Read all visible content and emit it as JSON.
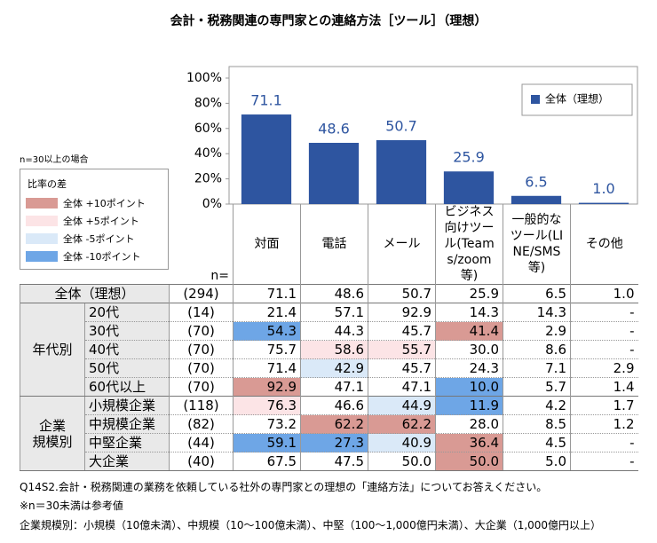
{
  "chart_data": {
    "type": "bar",
    "title": "会計・税務関連の専門家との連絡方法［ツール］（理想）",
    "categories": [
      "対面",
      "電話",
      "メール",
      "ビジネス向けツール(Teams/zoom等)",
      "一般的なツール(LINE/SMS等)",
      "その他"
    ],
    "series": [
      {
        "name": "全体（理想）",
        "color": "#2e55a0",
        "values": [
          71.1,
          48.6,
          50.7,
          25.9,
          6.5,
          1.0
        ],
        "value_labels": [
          "71.1",
          "48.6",
          "50.7",
          "25.9",
          "6.5",
          "1.0"
        ]
      }
    ],
    "ylim": [
      0,
      100
    ],
    "yticks": [
      {
        "value": 0,
        "label": "0%"
      },
      {
        "value": 20,
        "label": "20%"
      },
      {
        "value": 40,
        "label": "40%"
      },
      {
        "value": 60,
        "label": "60%"
      },
      {
        "value": 80,
        "label": "80%"
      },
      {
        "value": 100,
        "label": "100%"
      }
    ],
    "legend": "top-right"
  },
  "diff_legend": {
    "note": "n=30以上の場合",
    "title": "比率の差",
    "items": [
      {
        "label": "全体 +10ポイント",
        "color": "#d99a94"
      },
      {
        "label": "全体 +5ポイント",
        "color": "#fce4e6"
      },
      {
        "label": "全体 -5ポイント",
        "color": "#dae9f8"
      },
      {
        "label": "全体 -10ポイント",
        "color": "#6ea6e6"
      }
    ]
  },
  "table": {
    "n_label": "n=",
    "total": {
      "label": "全体（理想）",
      "n": "(294)",
      "values": [
        "71.1",
        "48.6",
        "50.7",
        "25.9",
        "6.5",
        "1.0"
      ],
      "colors": [
        null,
        null,
        null,
        null,
        null,
        null
      ]
    },
    "groups": [
      {
        "label": "年代別",
        "rows": [
          {
            "label": "20代",
            "n": "(14)",
            "values": [
              "21.4",
              "57.1",
              "92.9",
              "14.3",
              "14.3",
              "-"
            ],
            "colors": [
              null,
              null,
              null,
              null,
              null,
              null
            ]
          },
          {
            "label": "30代",
            "n": "(70)",
            "values": [
              "54.3",
              "44.3",
              "45.7",
              "41.4",
              "2.9",
              "-"
            ],
            "colors": [
              "#6ea6e6",
              null,
              null,
              "#d99a94",
              null,
              null
            ]
          },
          {
            "label": "40代",
            "n": "(70)",
            "values": [
              "75.7",
              "58.6",
              "55.7",
              "30.0",
              "8.6",
              "-"
            ],
            "colors": [
              null,
              "#fce4e6",
              "#fce4e6",
              null,
              null,
              null
            ]
          },
          {
            "label": "50代",
            "n": "(70)",
            "values": [
              "71.4",
              "42.9",
              "45.7",
              "24.3",
              "7.1",
              "2.9"
            ],
            "colors": [
              null,
              "#dae9f8",
              null,
              null,
              null,
              null
            ]
          },
          {
            "label": "60代以上",
            "n": "(70)",
            "values": [
              "92.9",
              "47.1",
              "47.1",
              "10.0",
              "5.7",
              "1.4"
            ],
            "colors": [
              "#d99a94",
              null,
              null,
              "#6ea6e6",
              null,
              null
            ]
          }
        ]
      },
      {
        "label": "企業\n規模別",
        "rows": [
          {
            "label": "小規模企業",
            "n": "(118)",
            "values": [
              "76.3",
              "46.6",
              "44.9",
              "11.9",
              "4.2",
              "1.7"
            ],
            "colors": [
              "#fce4e6",
              null,
              "#dae9f8",
              "#6ea6e6",
              null,
              null
            ]
          },
          {
            "label": "中規模企業",
            "n": "(82)",
            "values": [
              "73.2",
              "62.2",
              "62.2",
              "28.0",
              "8.5",
              "1.2"
            ],
            "colors": [
              null,
              "#d99a94",
              "#d99a94",
              null,
              null,
              null
            ]
          },
          {
            "label": "中堅企業",
            "n": "(44)",
            "values": [
              "59.1",
              "27.3",
              "40.9",
              "36.4",
              "4.5",
              "-"
            ],
            "colors": [
              "#6ea6e6",
              "#6ea6e6",
              "#dae9f8",
              "#d99a94",
              null,
              null
            ]
          },
          {
            "label": "大企業",
            "n": "(40)",
            "values": [
              "67.5",
              "47.5",
              "50.0",
              "50.0",
              "5.0",
              "-"
            ],
            "colors": [
              null,
              null,
              null,
              "#d99a94",
              null,
              null
            ]
          }
        ]
      }
    ]
  },
  "notes": [
    "Q14S2.会計・税務関連の業務を依頼している社外の専門家との理想の「連絡方法」についてお答えください。",
    "※n＝30未満は参考値",
    "企業規模別：小規模（10億未満）、中規模（10～100億未満）、中堅（100～1,000億円未満）、大企業（1,000億円以上）"
  ]
}
